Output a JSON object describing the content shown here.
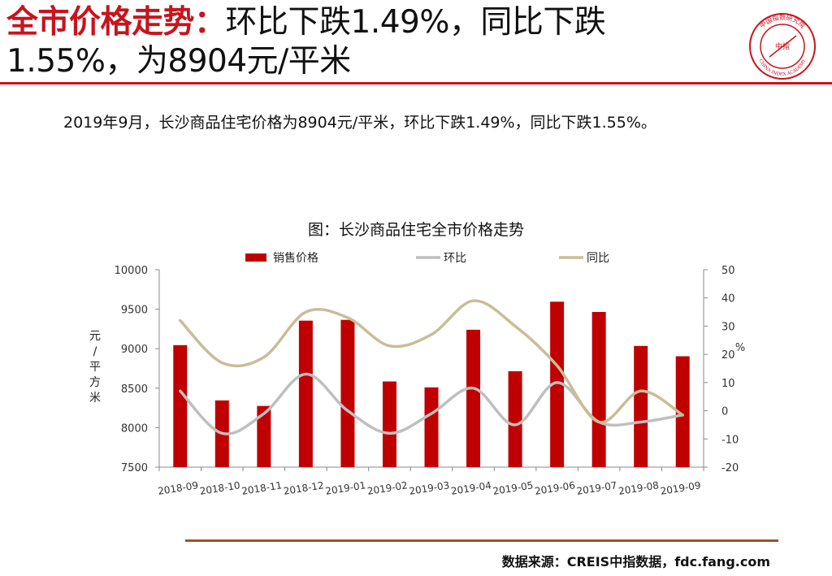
{
  "header": {
    "title_accent": "全市价格走势：",
    "title_line1_rest": "环比下跌1.49%，同比下跌",
    "title_line2": "1.55%，为8904元/平米",
    "accent_color": "#c8141c"
  },
  "logo": {
    "center_text": "中指",
    "ring_text_top": "中国指数研究院",
    "ring_text_bottom": "CHINA INDEX ACADEMY",
    "icon": "academy-seal-icon",
    "color": "#c8141c"
  },
  "summary": "2019年9月，长沙商品住宅价格为8904元/平米，环比下跌1.49%，同比下跌1.55%。",
  "source": "数据来源：CREIS中指数据，fdc.fang.com",
  "chart_data": {
    "type": "bar",
    "title": "图：长沙商品住宅全市价格走势",
    "categories": [
      "2018-09",
      "2018-10",
      "2018-11",
      "2018-12",
      "2019-01",
      "2019-02",
      "2019-03",
      "2019-04",
      "2019-05",
      "2019-06",
      "2019-07",
      "2019-08",
      "2019-09"
    ],
    "series": [
      {
        "name": "销售价格",
        "kind": "bar",
        "axis": "left",
        "color": "#c00000",
        "values": [
          9045,
          8345,
          8275,
          9355,
          9365,
          8585,
          8510,
          9240,
          8715,
          9595,
          9465,
          9035,
          8904
        ]
      },
      {
        "name": "环比",
        "kind": "line",
        "axis": "right",
        "color": "#bfbfbf",
        "values": [
          7,
          -8,
          -1,
          13,
          0,
          -8,
          -1,
          8,
          -5,
          10,
          -4,
          -4,
          -1.49
        ]
      },
      {
        "name": "同比",
        "kind": "line",
        "axis": "right",
        "color": "#c9bd98",
        "values": [
          32,
          17,
          19,
          35,
          33,
          23,
          27,
          39,
          30,
          16,
          -4,
          7,
          -1.55
        ]
      }
    ],
    "ylabel": "元/平方米",
    "ylim": [
      7500,
      10000
    ],
    "yticks": [
      "7500",
      "8000",
      "8500",
      "9000",
      "9500",
      "10000"
    ],
    "y2label": "%",
    "y2lim": [
      -20,
      50
    ],
    "y2ticks": [
      "-20",
      "-10",
      "0",
      "10",
      "20",
      "30",
      "40",
      "50"
    ],
    "legend_position": "top",
    "grid": false
  }
}
